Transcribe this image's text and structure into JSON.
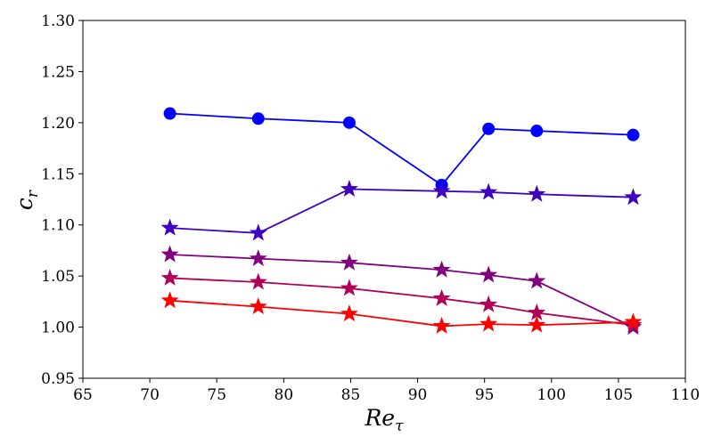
{
  "chart_data": {
    "type": "line",
    "title": "",
    "xlabel": "Re_τ",
    "ylabel": "c_r",
    "xlim": [
      65,
      110
    ],
    "ylim": [
      0.95,
      1.3
    ],
    "xticks": [
      "65",
      "70",
      "75",
      "80",
      "85",
      "90",
      "95",
      "100",
      "105",
      "110"
    ],
    "yticks": [
      "0.95",
      "1.00",
      "1.05",
      "1.10",
      "1.15",
      "1.20",
      "1.25",
      "1.30"
    ],
    "grid": false,
    "legend": "none",
    "series": [
      {
        "color": "#0000ff",
        "marker": "circle",
        "x": [
          71.5,
          78.1,
          84.9,
          91.8,
          95.3,
          98.9,
          106.1
        ],
        "y": [
          1.209,
          1.204,
          1.2,
          1.139,
          1.194,
          1.192,
          1.188
        ]
      },
      {
        "color": "#4000bf",
        "marker": "star",
        "x": [
          71.5,
          78.1,
          84.9,
          91.8,
          95.3,
          98.9,
          106.1
        ],
        "y": [
          1.097,
          1.092,
          1.135,
          1.133,
          1.132,
          1.13,
          1.127
        ]
      },
      {
        "color": "#800080",
        "marker": "star",
        "x": [
          71.5,
          78.1,
          84.9,
          91.8,
          95.3,
          98.9,
          106.1
        ],
        "y": [
          1.071,
          1.067,
          1.063,
          1.056,
          1.051,
          1.045,
          1.0
        ]
      },
      {
        "color": "#b00058",
        "marker": "star",
        "x": [
          71.5,
          78.1,
          84.9,
          91.8,
          95.3,
          98.9,
          106.1
        ],
        "y": [
          1.048,
          1.044,
          1.038,
          1.028,
          1.022,
          1.014,
          1.002
        ]
      },
      {
        "color": "#ff0000",
        "marker": "star",
        "x": [
          71.5,
          78.1,
          84.9,
          91.8,
          95.3,
          98.9,
          106.1
        ],
        "y": [
          1.026,
          1.02,
          1.013,
          1.001,
          1.003,
          1.002,
          1.005
        ]
      }
    ]
  }
}
